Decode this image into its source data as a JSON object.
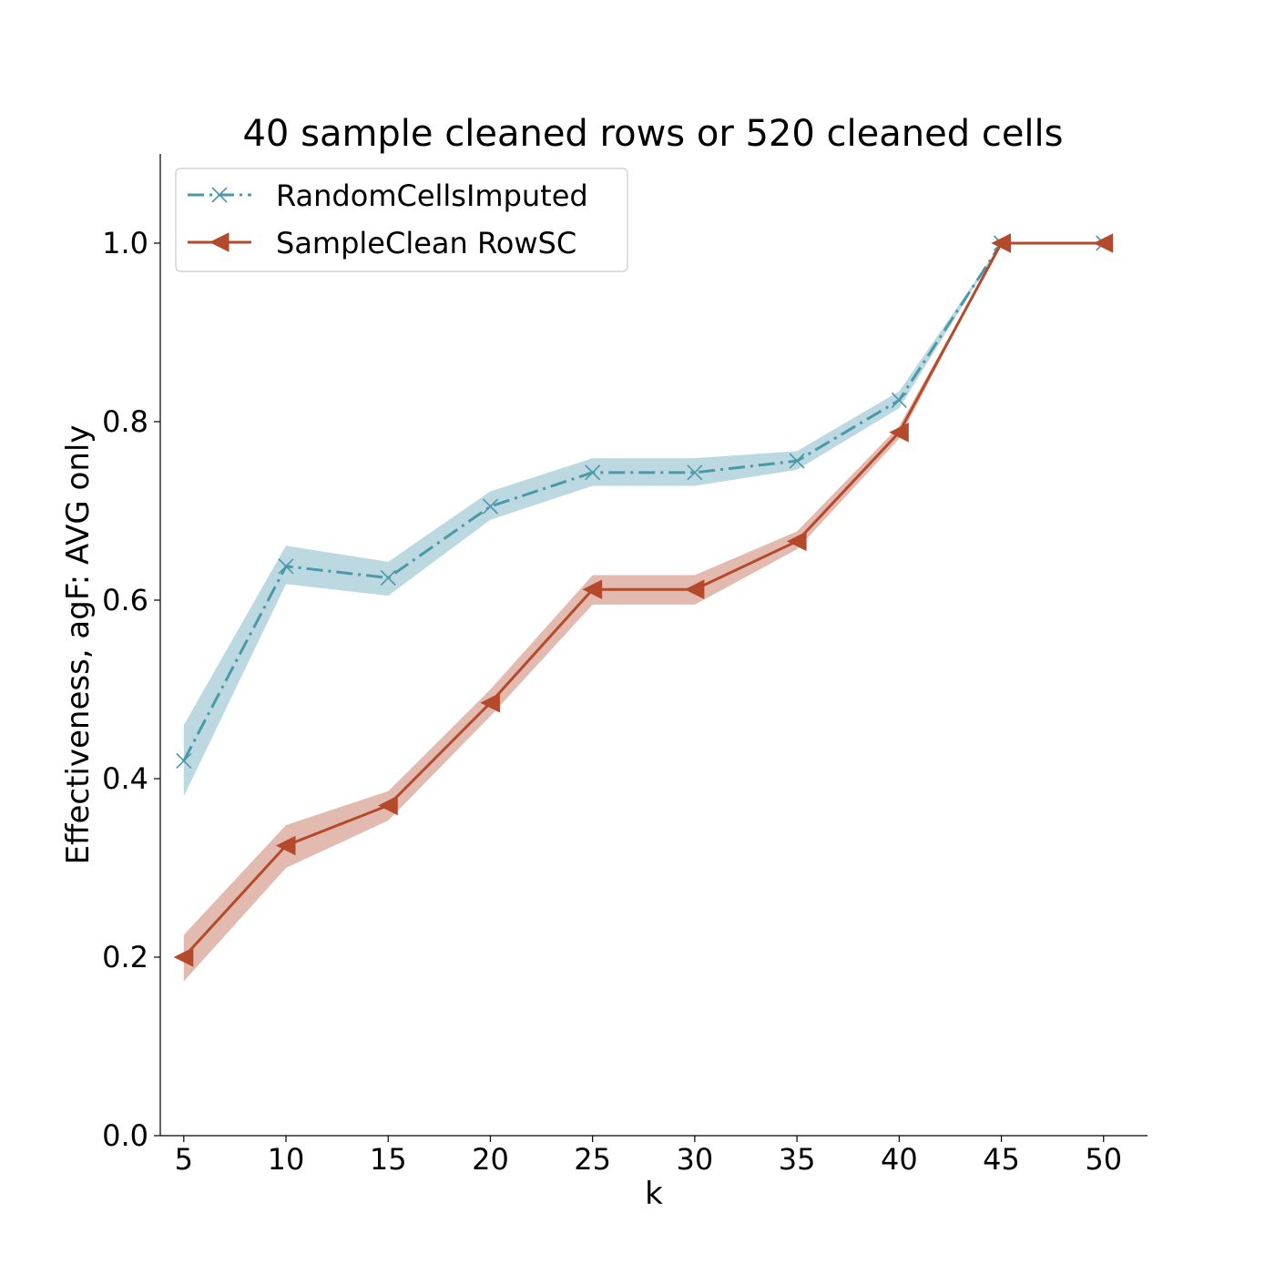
{
  "chart_data": {
    "type": "line",
    "title": "40 sample cleaned rows or 520 cleaned cells",
    "xlabel": "k",
    "ylabel": "Effectiveness, agF: AVG only",
    "x": [
      5,
      10,
      15,
      20,
      25,
      30,
      35,
      40,
      45,
      50
    ],
    "xticks": [
      "5",
      "10",
      "15",
      "20",
      "25",
      "30",
      "35",
      "40",
      "45",
      "50"
    ],
    "yticks": [
      "0.0",
      "0.2",
      "0.4",
      "0.6",
      "0.8",
      "1.0"
    ],
    "xlim": [
      3.85,
      52.15
    ],
    "ylim": [
      0,
      1.1
    ],
    "grid": false,
    "legend_position": "upper-left",
    "series": [
      {
        "name": "RandomCellsImputed",
        "color": "#4a98a8",
        "band_color": "#7fb7c7",
        "marker": "x",
        "linestyle": "dash-dot",
        "values": [
          0.42,
          0.638,
          0.625,
          0.705,
          0.743,
          0.743,
          0.756,
          0.824,
          1.0,
          1.0
        ],
        "lower": [
          0.38,
          0.618,
          0.605,
          0.69,
          0.728,
          0.728,
          0.746,
          0.815,
          1.0,
          1.0
        ],
        "upper": [
          0.46,
          0.661,
          0.643,
          0.722,
          0.759,
          0.759,
          0.767,
          0.834,
          1.0,
          1.0
        ]
      },
      {
        "name": "SampleClean RowSC",
        "color": "#b5492b",
        "band_color": "#c97a66",
        "marker": "triangle-left",
        "linestyle": "solid",
        "values": [
          0.2,
          0.325,
          0.37,
          0.485,
          0.612,
          0.612,
          0.666,
          0.788,
          1.0,
          1.0
        ],
        "lower": [
          0.173,
          0.3,
          0.353,
          0.47,
          0.595,
          0.595,
          0.657,
          0.781,
          1.0,
          1.0
        ],
        "upper": [
          0.225,
          0.348,
          0.386,
          0.5,
          0.628,
          0.628,
          0.677,
          0.795,
          1.0,
          1.0
        ]
      }
    ]
  }
}
